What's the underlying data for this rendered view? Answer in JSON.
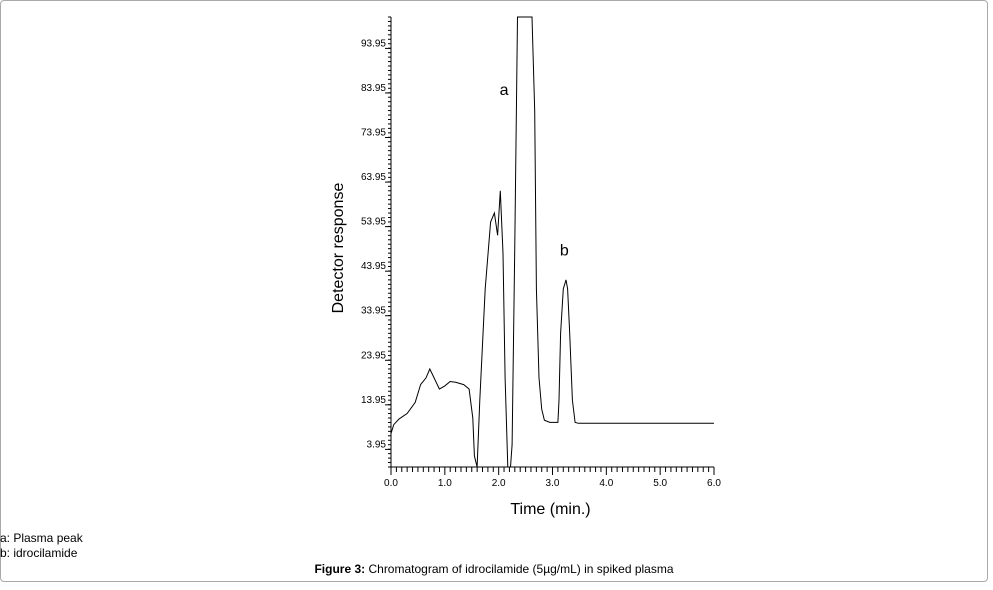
{
  "chart_data": {
    "type": "line",
    "xlabel": "Time (min.)",
    "ylabel": "Detector response",
    "xlim": [
      0,
      6
    ],
    "ylim": [
      0,
      101
    ],
    "x_ticks": [
      {
        "value": 0,
        "label": "0.0"
      },
      {
        "value": 1,
        "label": "1.0"
      },
      {
        "value": 2,
        "label": "2.0"
      },
      {
        "value": 3,
        "label": "3.0"
      },
      {
        "value": 4,
        "label": "4.0"
      },
      {
        "value": 5,
        "label": "5.0"
      },
      {
        "value": 6,
        "label": "6.0"
      }
    ],
    "y_ticks": [
      {
        "value": 3.95,
        "label": "3.95"
      },
      {
        "value": 13.95,
        "label": "13.95"
      },
      {
        "value": 23.95,
        "label": "23.95"
      },
      {
        "value": 33.95,
        "label": "33.95"
      },
      {
        "value": 43.95,
        "label": "43.95"
      },
      {
        "value": 53.95,
        "label": "53.95"
      },
      {
        "value": 63.95,
        "label": "63.95"
      },
      {
        "value": 73.95,
        "label": "73.95"
      },
      {
        "value": 83.95,
        "label": "83.95"
      },
      {
        "value": 93.95,
        "label": "93.95"
      }
    ],
    "grid": false,
    "series": [
      {
        "x": [
          0.0,
          0.05,
          0.15,
          0.3,
          0.45,
          0.55,
          0.65,
          0.72,
          0.8,
          0.9,
          1.0,
          1.1,
          1.2,
          1.35,
          1.45,
          1.52,
          1.55,
          1.6,
          1.65,
          1.75,
          1.85,
          1.92,
          1.98,
          2.03,
          2.08,
          2.12,
          2.17,
          2.22,
          2.25,
          2.3,
          2.35,
          2.4,
          2.45,
          2.5,
          2.55,
          2.62,
          2.67,
          2.7,
          2.75,
          2.8,
          2.85,
          2.95,
          3.05,
          3.1,
          3.12,
          3.15,
          3.2,
          3.25,
          3.28,
          3.32,
          3.37,
          3.42,
          3.48,
          3.55,
          3.7,
          4.0,
          4.5,
          5.0,
          5.5,
          5.8,
          6.0
        ],
        "y": [
          7.5,
          9.5,
          10.8,
          12.0,
          14.5,
          18.5,
          20.0,
          22.0,
          20.0,
          17.5,
          18.2,
          19.2,
          19.0,
          18.5,
          17.5,
          11.0,
          2.5,
          0.0,
          15.0,
          40.0,
          55.0,
          57.0,
          52.0,
          62.0,
          48.0,
          20.0,
          0.0,
          0.0,
          5.0,
          50.0,
          101.0,
          101.0,
          101.0,
          101.0,
          101.0,
          101.0,
          80.0,
          40.0,
          20.0,
          13.0,
          10.5,
          10.0,
          10.0,
          10.0,
          15.0,
          30.0,
          40.0,
          42.0,
          40.0,
          30.0,
          15.0,
          10.0,
          9.8,
          9.8,
          9.8,
          9.8,
          9.8,
          9.8,
          9.8,
          9.8,
          9.8
        ]
      }
    ],
    "annotations": [
      {
        "text": "a",
        "x": 2.1,
        "y": 83.5
      },
      {
        "text": "b",
        "x": 3.22,
        "y": 47.5
      }
    ]
  },
  "legend": {
    "a": "a: Plasma peak",
    "b": "b: idrocilamide"
  },
  "caption": {
    "label": "Figure 3:",
    "text": " Chromatogram of idrocilamide (5µg/mL) in spiked plasma"
  }
}
